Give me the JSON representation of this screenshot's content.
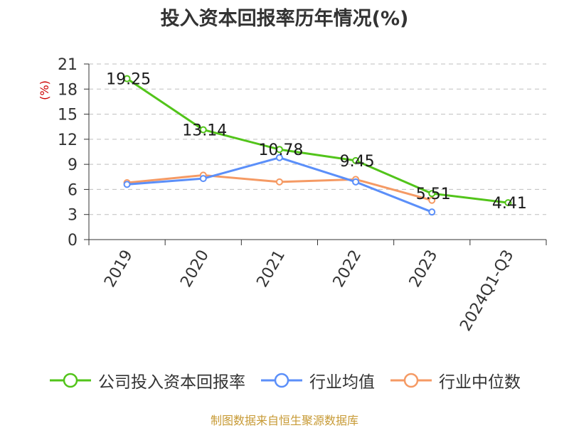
{
  "chart_data": {
    "type": "line",
    "title": "投入资本回报率历年情况(%)",
    "ylabel": "(%)",
    "categories": [
      "2019",
      "2020",
      "2021",
      "2022",
      "2023",
      "2024Q1-Q3"
    ],
    "ylim": [
      0,
      21
    ],
    "yticks": [
      0,
      3,
      6,
      9,
      12,
      15,
      18,
      21
    ],
    "grid": true,
    "legend_position": "bottom",
    "series": [
      {
        "name": "公司投入资本回报率",
        "color": "#52c41a",
        "values": [
          19.25,
          13.14,
          10.78,
          9.45,
          5.51,
          4.41
        ],
        "labels": [
          "19.25",
          "13.14",
          "10.78",
          "9.45",
          "5.51",
          "4.41"
        ]
      },
      {
        "name": "行业均值",
        "color": "#5b8ff9",
        "values": [
          6.6,
          7.3,
          9.8,
          6.9,
          3.3,
          null
        ]
      },
      {
        "name": "行业中位数",
        "color": "#f59a64",
        "values": [
          6.8,
          7.7,
          6.9,
          7.2,
          4.7,
          null
        ]
      }
    ]
  },
  "source": "制图数据来自恒生聚源数据库"
}
